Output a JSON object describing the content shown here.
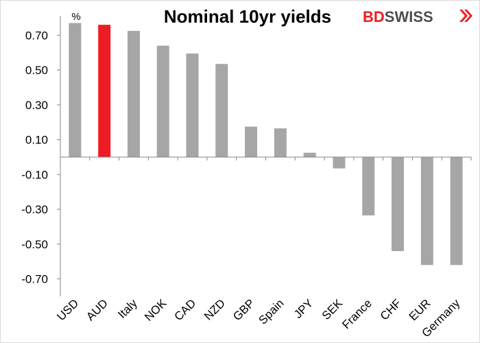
{
  "chart_data": {
    "type": "bar",
    "title": "Nominal 10yr yields",
    "unit": "%",
    "categories": [
      "USD",
      "AUD",
      "Italy",
      "NOK",
      "CAD",
      "NZD",
      "GBP",
      "Spain",
      "JPY",
      "SEK",
      "France",
      "CHF",
      "EUR",
      "Germany"
    ],
    "values": [
      0.77,
      0.76,
      0.725,
      0.64,
      0.595,
      0.535,
      0.175,
      0.165,
      0.025,
      -0.065,
      -0.335,
      -0.54,
      -0.62,
      -0.62
    ],
    "y_ticks": [
      "0.70",
      "0.50",
      "0.30",
      "0.10",
      "-0.10",
      "-0.30",
      "-0.50",
      "-0.70"
    ],
    "ylim": [
      -0.8,
      0.8
    ],
    "highlight_category": "AUD",
    "colors": {
      "bar": "#a6a6a6",
      "highlight": "#ed1c24",
      "axis": "#868686"
    },
    "grid": false,
    "legend": "none"
  },
  "brand": {
    "logo_text_bd": "BD",
    "logo_text_swiss": "SWISS",
    "logo_colors": {
      "bd": "#ed1c24",
      "swiss": "#4d4d4d"
    },
    "logo_icon": "double-chevron-icon"
  }
}
